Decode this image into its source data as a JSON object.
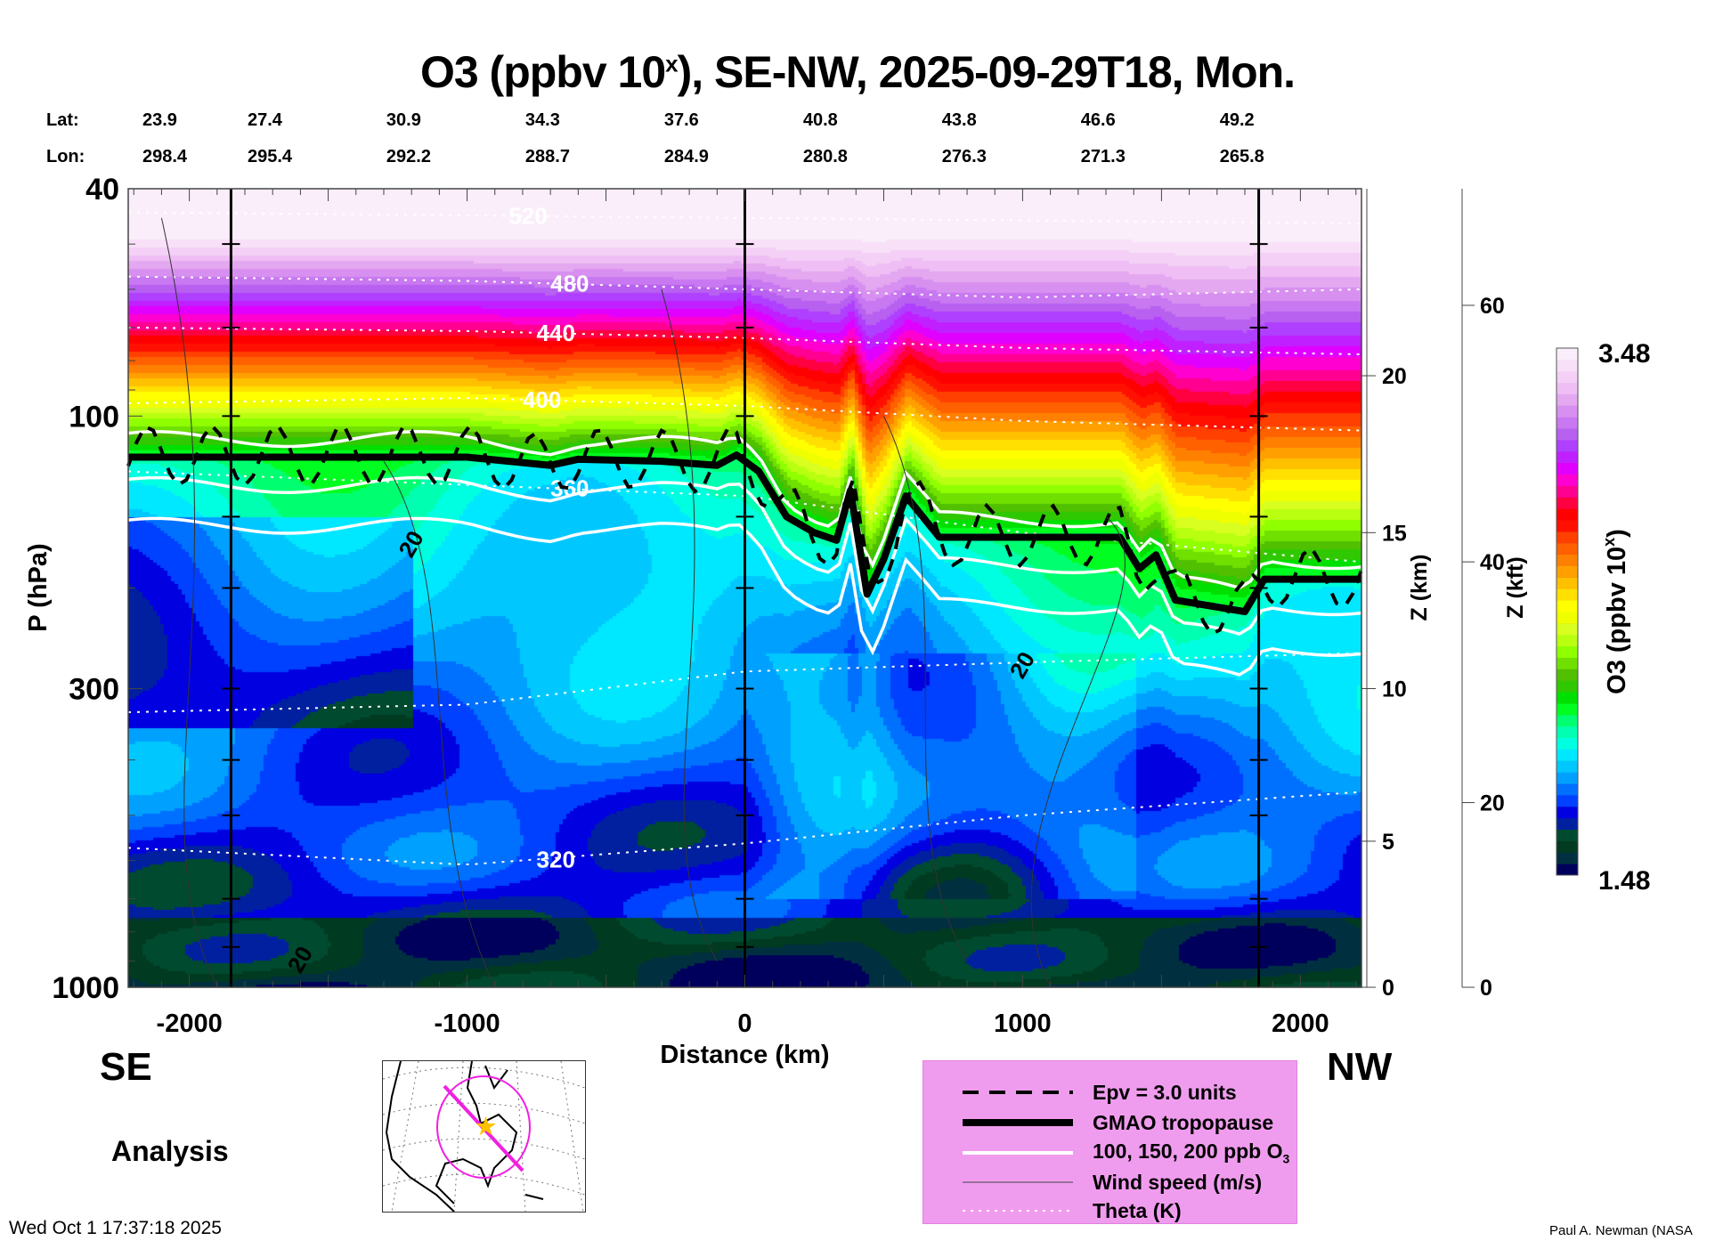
{
  "title": {
    "main": "O3 (ppbv 10",
    "sup": "x",
    "rest": "), SE-NW, 2025-09-29T18, Mon."
  },
  "lat_label": "Lat:",
  "lon_label": "Lon:",
  "lats": [
    "23.9",
    "27.4",
    "30.9",
    "34.3",
    "37.6",
    "40.8",
    "43.8",
    "46.6",
    "49.2"
  ],
  "lons": [
    "298.4",
    "295.4",
    "292.2",
    "288.7",
    "284.9",
    "280.8",
    "276.3",
    "271.3",
    "265.8"
  ],
  "direction_left": "SE",
  "direction_right": "NW",
  "analysis_label": "Analysis",
  "timestamp": "Wed Oct  1 17:37:18 2025",
  "credit": "Paul A. Newman (NASA",
  "legend": {
    "items": [
      {
        "label": "Epv = 3.0 units",
        "style": "dashed"
      },
      {
        "label": "GMAO tropopause",
        "style": "thick"
      },
      {
        "label": "100, 150, 200 ppb O",
        "sub": "3",
        "style": "white"
      },
      {
        "label": "Wind speed (m/s)",
        "style": "thin"
      },
      {
        "label": "Theta (K)",
        "style": "dotted"
      }
    ]
  },
  "chart_data": {
    "type": "heatmap",
    "title": "O3 (ppbv 10^x), SE-NW, 2025-09-29T18, Mon.",
    "xlabel": "Distance (km)",
    "ylabel": "P (hPa)",
    "y2label": "Z (km)",
    "y3label": "Z (kft)",
    "colorbar_label": "O3 (ppbv 10",
    "colorbar_label_sup": "x",
    "colorbar_label_end": ")",
    "xlim": [
      -2220,
      2220
    ],
    "ylim": [
      1000,
      40
    ],
    "xticks": [
      "-2000",
      "-1000",
      "0",
      "1000",
      "2000"
    ],
    "xtick_values": [
      -2000,
      -1000,
      0,
      1000,
      2000
    ],
    "yticks": [
      "40",
      "100",
      "300",
      "1000"
    ],
    "ytick_values": [
      40,
      100,
      300,
      1000
    ],
    "zkm_ticks": [
      "0",
      "5",
      "10",
      "15",
      "20"
    ],
    "zkm_pressures": [
      1000,
      555,
      300,
      160,
      85
    ],
    "zkft_ticks": [
      "0",
      "20",
      "40",
      "60"
    ],
    "zkft_pressures": [
      1000,
      475,
      180,
      64
    ],
    "colorbar": {
      "min_label": "3.48",
      "max_label": "1.48",
      "min": 1.48,
      "max": 3.48,
      "colors": [
        "#00005c",
        "#003040",
        "#003a20",
        "#004a30",
        "#0020a0",
        "#0000e0",
        "#0040ff",
        "#0070ff",
        "#00a0ff",
        "#00c8ff",
        "#00e8ff",
        "#00ffe0",
        "#00ffb0",
        "#00ff70",
        "#00ff20",
        "#00e000",
        "#30c800",
        "#50c000",
        "#70e000",
        "#90ff00",
        "#b8ff10",
        "#d8ff20",
        "#f0ff00",
        "#ffff00",
        "#ffe000",
        "#ffc000",
        "#ffa000",
        "#ff8000",
        "#ff6000",
        "#ff4000",
        "#ff1000",
        "#ff0000",
        "#ff0040",
        "#ff0090",
        "#ff00d0",
        "#e000ff",
        "#c020ff",
        "#b040ff",
        "#b860f0",
        "#c878f0",
        "#d890f0",
        "#e4a8f0",
        "#eebef4",
        "#f4d0f6",
        "#f8e0f8",
        "#fbeefb"
      ]
    },
    "vertical_lines_km": [
      -1850,
      0,
      1850
    ],
    "tropopause": [
      [
        -2220,
        118
      ],
      [
        -1000,
        118
      ],
      [
        -700,
        122
      ],
      [
        -600,
        119
      ],
      [
        -300,
        120
      ],
      [
        -100,
        122
      ],
      [
        -30,
        117
      ],
      [
        50,
        125
      ],
      [
        150,
        150
      ],
      [
        250,
        160
      ],
      [
        330,
        165
      ],
      [
        380,
        135
      ],
      [
        440,
        205
      ],
      [
        500,
        178
      ],
      [
        580,
        138
      ],
      [
        700,
        163
      ],
      [
        1350,
        163
      ],
      [
        1420,
        185
      ],
      [
        1480,
        175
      ],
      [
        1550,
        210
      ],
      [
        1800,
        220
      ],
      [
        1870,
        193
      ],
      [
        2220,
        193
      ]
    ],
    "theta_lines": [
      {
        "label": "520",
        "points": [
          [
            -2220,
            44
          ],
          [
            0,
            45
          ],
          [
            2220,
            46
          ]
        ],
        "label_at": -850
      },
      {
        "label": "480",
        "points": [
          [
            -2220,
            57
          ],
          [
            -1000,
            58
          ],
          [
            0,
            60
          ],
          [
            1000,
            62
          ],
          [
            2220,
            60
          ]
        ],
        "label_at": -700
      },
      {
        "label": "440",
        "points": [
          [
            -2220,
            70
          ],
          [
            -1000,
            71
          ],
          [
            0,
            73
          ],
          [
            1000,
            76
          ],
          [
            2220,
            78
          ]
        ],
        "label_at": -750
      },
      {
        "label": "400",
        "points": [
          [
            -2220,
            95
          ],
          [
            -1000,
            93
          ],
          [
            0,
            96
          ],
          [
            1000,
            102
          ],
          [
            2220,
            106
          ]
        ],
        "label_at": -800
      },
      {
        "label": "360",
        "points": [
          [
            -2220,
            125
          ],
          [
            -1000,
            132
          ],
          [
            0,
            138
          ],
          [
            1000,
            160
          ],
          [
            2220,
            180
          ]
        ],
        "label_at": -700
      },
      {
        "label": "320",
        "points": [
          [
            -2220,
            570
          ],
          [
            -1000,
            610
          ],
          [
            0,
            560
          ],
          [
            1000,
            500
          ],
          [
            2220,
            455
          ]
        ],
        "label_at": -750
      },
      {
        "label": "",
        "points": [
          [
            -2220,
            330
          ],
          [
            -1000,
            320
          ],
          [
            0,
            280
          ],
          [
            1000,
            270
          ],
          [
            2220,
            260
          ]
        ],
        "label_at": 0
      }
    ],
    "ozone_contours_ppb": [
      100,
      150,
      200
    ],
    "wind_labels": [
      "20",
      "20",
      "20"
    ]
  }
}
